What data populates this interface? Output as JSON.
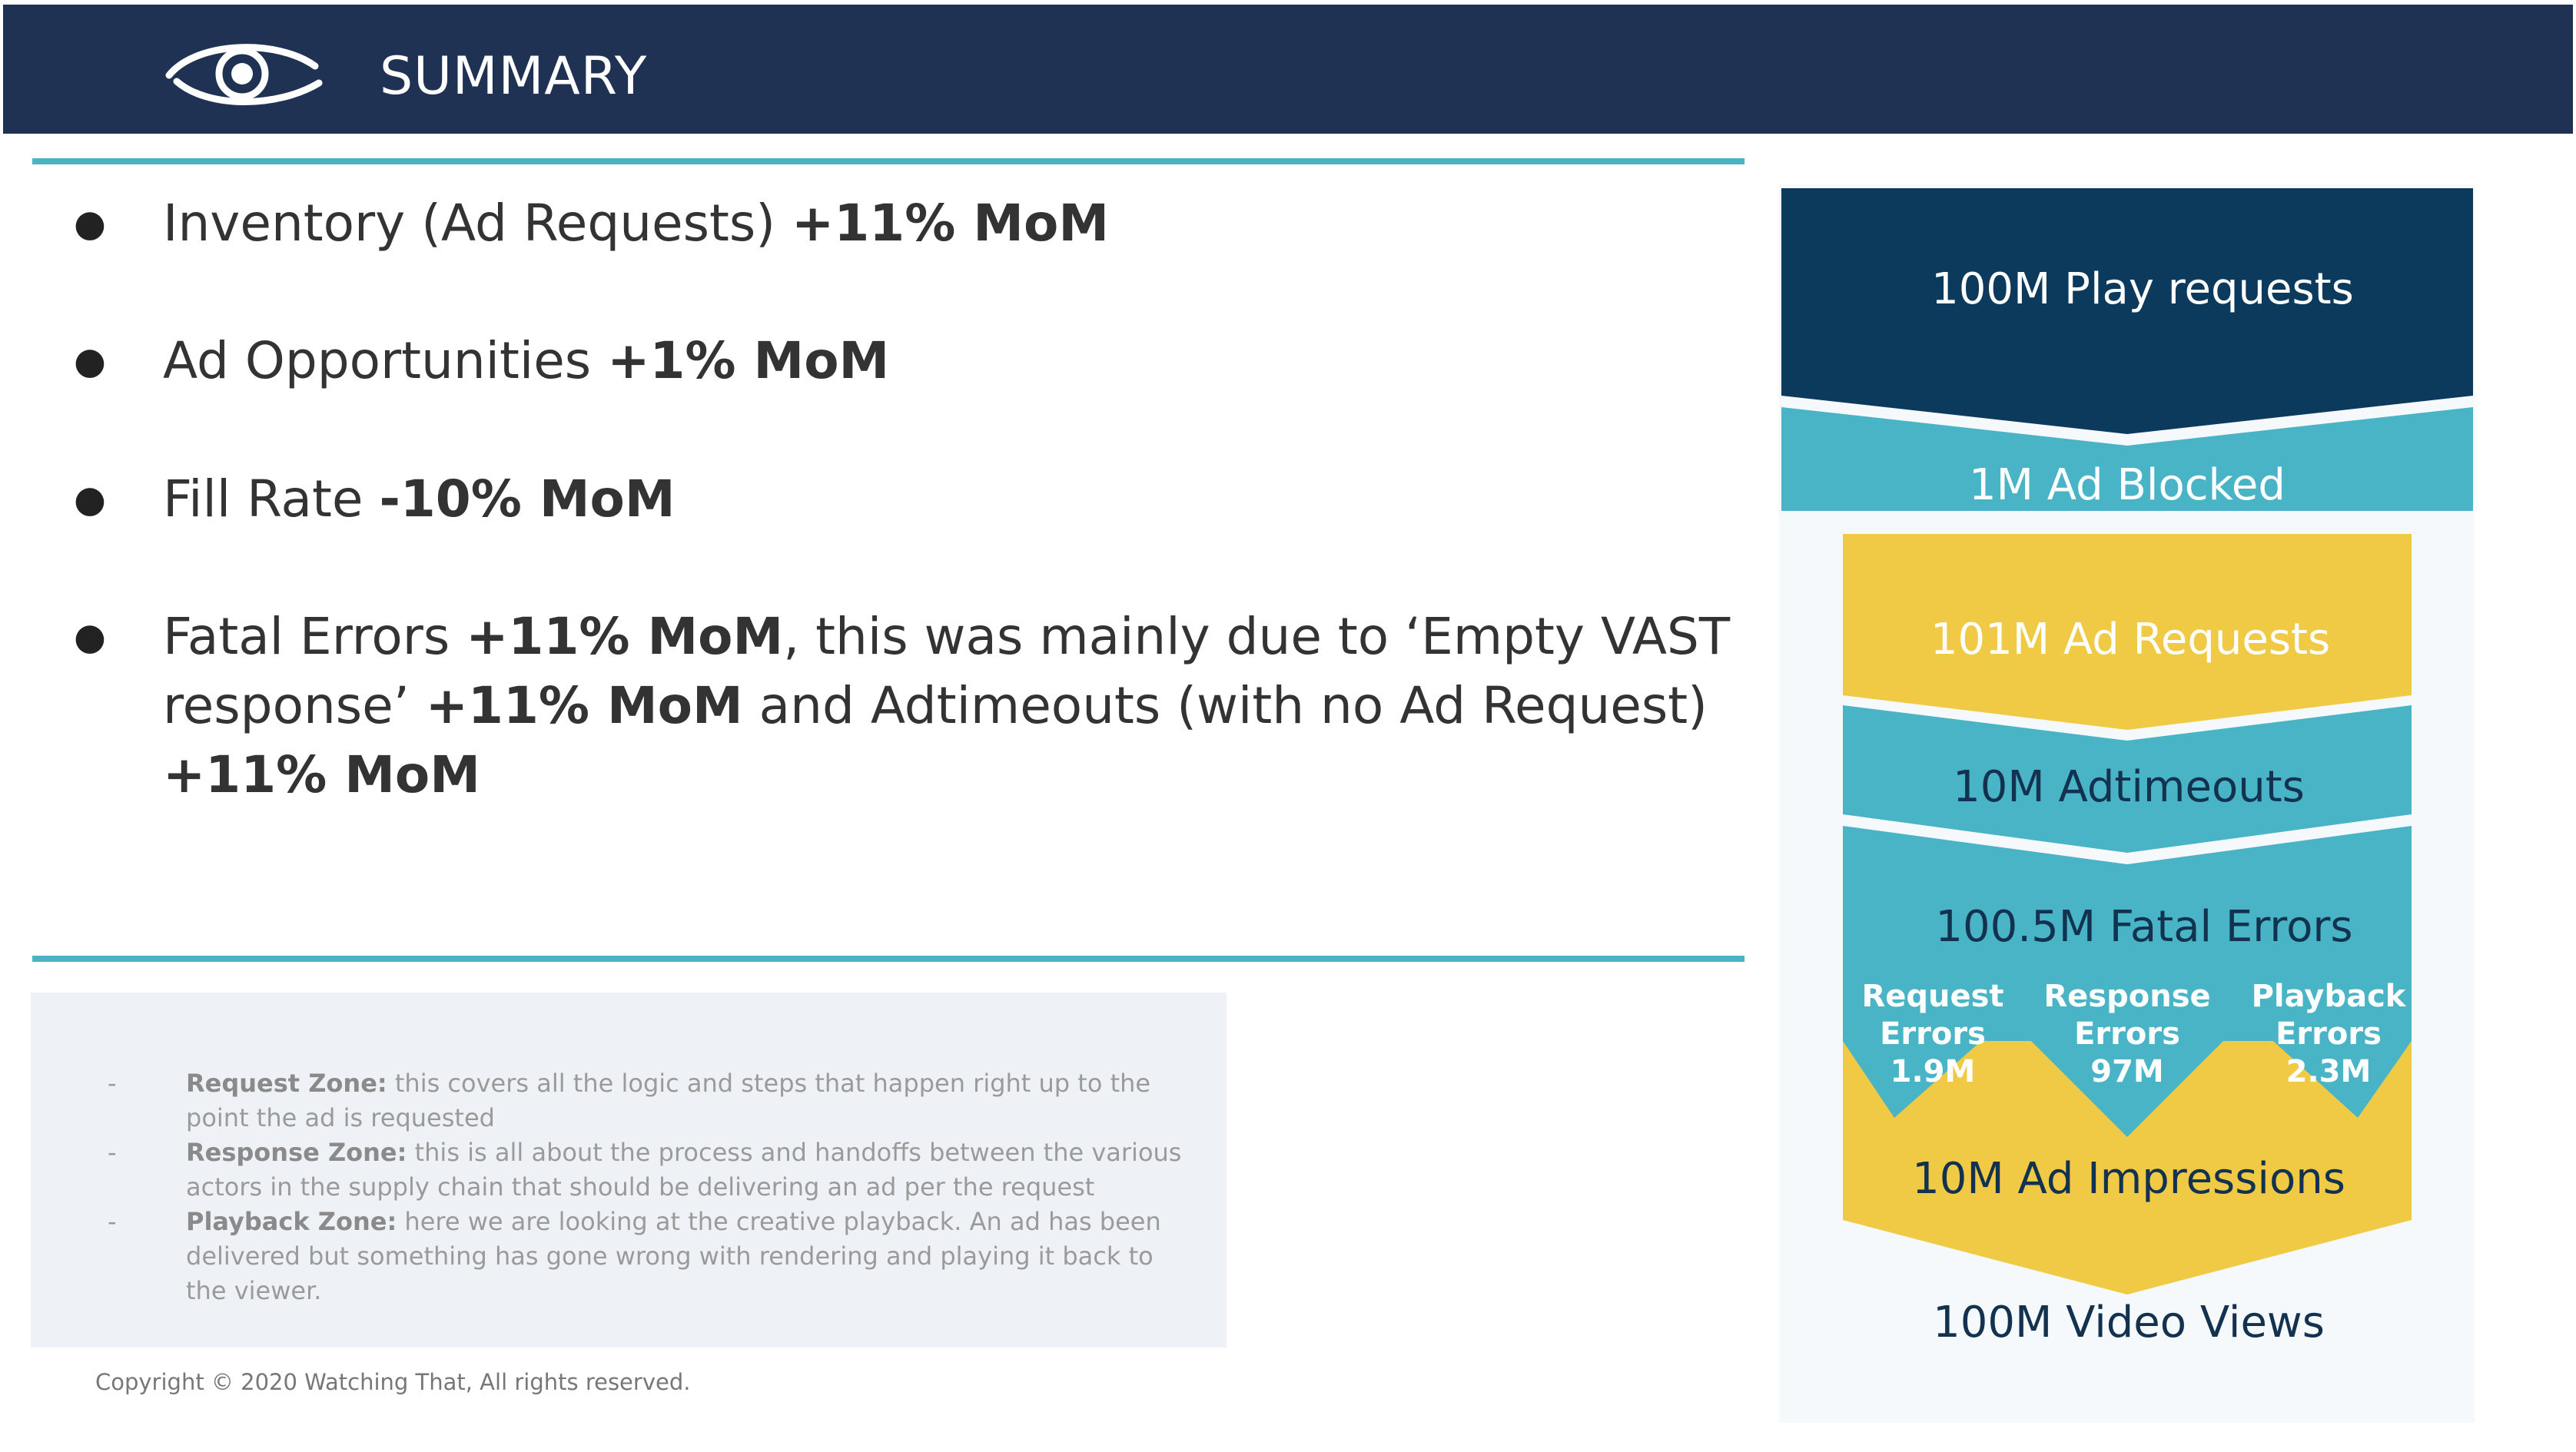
{
  "header": {
    "title": "SUMMARY",
    "logo_icon": "eye-logo-icon",
    "background": "#203253"
  },
  "bullets": [
    {
      "lead": "Inventory (Ad Requests) ",
      "bold": "+11% MoM"
    },
    {
      "lead": "Ad Opportunities ",
      "bold": "+1% MoM"
    },
    {
      "lead": "Fill Rate ",
      "bold": "-10% MoM"
    },
    {
      "line1_a": "Fatal Errors ",
      "line1_b": "+11% MoM",
      "line1_c": ", this was mainly due to ‘Empty VAST",
      "line2_a": "response’ ",
      "line2_b": "+11% MoM",
      "line2_c": " and Adtimeouts (with no Ad Request)",
      "line3_b": "+11% MoM"
    }
  ],
  "notes": [
    {
      "dash": "-",
      "title": "Request Zone:",
      "line1": " this covers all the logic and steps that happen right up to the",
      "line2": "point the ad is requested"
    },
    {
      "dash": "-",
      "title": "Response Zone:",
      "line1": " this is all about the process and handoffs between the various",
      "line2": "actors in the supply chain that should be delivering an ad per the request"
    },
    {
      "dash": "-",
      "title": "Playback Zone:",
      "line1": " here we are looking at the creative playback. An ad has been",
      "line2": "delivered but something has gone wrong with rendering and playing it back to",
      "line3": "the viewer."
    }
  ],
  "copyright": "Copyright © 2020 Watching That, All rights reserved.",
  "funnel": {
    "colors": {
      "navy": "#0c3a5c",
      "teal": "#4ab4c7",
      "yellow": "#f0ca45",
      "pale": "#f6f9fb"
    },
    "stages": {
      "play_requests": "100M Play requests",
      "ad_blocked": "1M Ad Blocked",
      "ad_requests": "101M Ad Requests",
      "adtimeouts": "10M Adtimeouts",
      "fatal_errors": "100.5M Fatal Errors",
      "ad_impressions": "10M Ad Impressions",
      "video_views": "100M Video Views"
    },
    "errors": {
      "request": {
        "l1": "Request",
        "l2": "Errors",
        "l3": "1.9M"
      },
      "response": {
        "l1": "Response",
        "l2": "Errors",
        "l3": "97M"
      },
      "playback": {
        "l1": "Playback",
        "l2": "Errors",
        "l3": "2.3M"
      }
    }
  }
}
